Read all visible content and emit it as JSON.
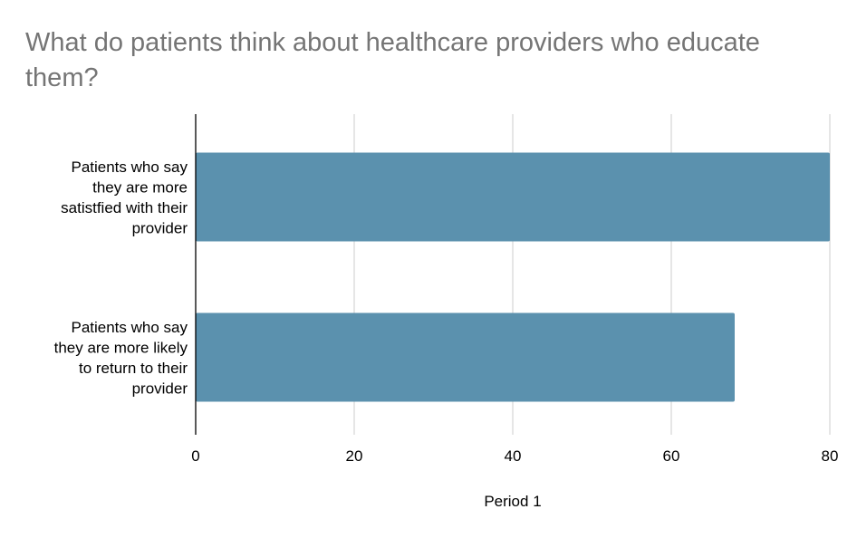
{
  "chart_data": {
    "type": "bar",
    "orientation": "horizontal",
    "title": "What do patients think about healthcare providers who educate them?",
    "categories": [
      [
        "Patients who say",
        "they are more",
        "satistfied with their",
        "provider"
      ],
      [
        "Patients who say",
        "they are more likely",
        "to return to their",
        "provider"
      ]
    ],
    "values": [
      80,
      68
    ],
    "xlabel": "Period 1",
    "ylabel": "",
    "xlim": [
      0,
      80
    ],
    "xticks": [
      "0",
      "20",
      "40",
      "60",
      "80"
    ],
    "grid": "vertical",
    "bar_color": "#5b91ae",
    "gridline_color": "#cccccc",
    "axis_color": "#000000"
  }
}
